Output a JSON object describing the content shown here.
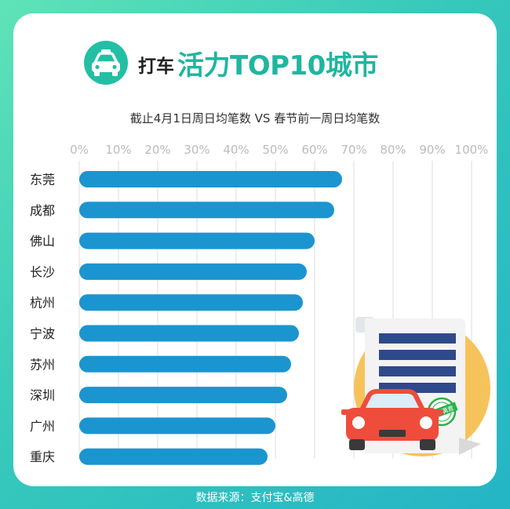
{
  "title": {
    "prefix": "打车",
    "main": "活力TOP10城市"
  },
  "icons": {
    "badge": "taxi-icon",
    "illustration": "car-and-document-icon",
    "stamp": "satisfaction-stamp-icon"
  },
  "stamp_text": "用户满意",
  "source": "数据来源：支付宝&高德",
  "colors": {
    "bar": "#1b95cf",
    "accent": "#1fb69f",
    "grid": "#dddddd",
    "tick": "#bbbbbb"
  },
  "chart_data": {
    "type": "bar",
    "orientation": "horizontal",
    "title": "截止4月1日周日均笔数 VS 春节前一周日均笔数",
    "categories": [
      "东莞",
      "成都",
      "佛山",
      "长沙",
      "杭州",
      "宁波",
      "苏州",
      "深圳",
      "广州",
      "重庆"
    ],
    "values": [
      67,
      65,
      60,
      58,
      57,
      56,
      54,
      53,
      50,
      48
    ],
    "x_ticks": [
      "0%",
      "10%",
      "20%",
      "30%",
      "40%",
      "50%",
      "60%",
      "70%",
      "80%",
      "90%",
      "100%"
    ],
    "xlim": [
      0,
      100
    ],
    "unit": "%",
    "grid": true
  }
}
